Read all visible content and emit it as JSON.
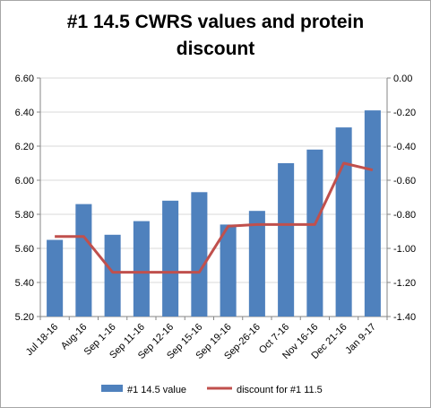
{
  "chart_data": {
    "type": "bar",
    "title_lines": [
      "#1 14.5 CWRS values and protein",
      "discount"
    ],
    "categories": [
      "Jul 18-16",
      "Aug-16",
      "Sep 1-16",
      "Sep 11-16",
      "Sep 12-16",
      "Sep 15-16",
      "Sep 19-16",
      "Sep-26-16",
      "Oct 7-16",
      "Nov 16-16",
      "Dec 21-16",
      "Jan 9-17"
    ],
    "series": [
      {
        "name": "#1 14.5 value",
        "type": "bar",
        "axis": "left",
        "color": "#4f81bd",
        "values": [
          5.65,
          5.86,
          5.68,
          5.76,
          5.88,
          5.93,
          5.74,
          5.82,
          6.1,
          6.18,
          6.31,
          6.41
        ]
      },
      {
        "name": "discount for #1 11.5",
        "type": "line",
        "axis": "right",
        "color": "#c0504d",
        "values": [
          -0.93,
          -0.93,
          -1.14,
          -1.14,
          -1.14,
          -1.14,
          -0.87,
          -0.86,
          -0.86,
          -0.86,
          -0.5,
          -0.54
        ]
      }
    ],
    "y_left": {
      "min": 5.2,
      "max": 6.6,
      "step": 0.2,
      "ticks": [
        "5.20",
        "5.40",
        "5.60",
        "5.80",
        "6.00",
        "6.20",
        "6.40",
        "6.60"
      ]
    },
    "y_right": {
      "min": -1.4,
      "max": 0.0,
      "step": 0.2,
      "ticks": [
        "-1.40",
        "-1.20",
        "-1.00",
        "-0.80",
        "-0.60",
        "-0.40",
        "-0.20",
        "0.00"
      ]
    },
    "gridlines": true,
    "legend_position": "bottom",
    "gridline_color": "#d9d9d9",
    "axis_color": "#868686"
  }
}
